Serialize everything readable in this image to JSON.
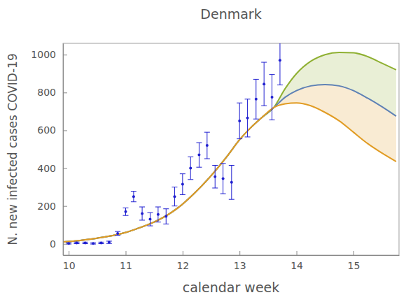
{
  "chart_data": {
    "type": "line",
    "title": "Denmark",
    "x_label": "calendar week",
    "y_label": "N. new infected cases COVID-19",
    "xlim": [
      9.9,
      15.8
    ],
    "xticks": [
      10,
      11,
      12,
      13,
      14,
      15
    ],
    "ylim": [
      -60,
      1060
    ],
    "yticks": [
      0,
      200,
      400,
      600,
      800,
      1000
    ],
    "grid": false,
    "series": [
      {
        "type": "scatter",
        "marker": "circle",
        "color": "#1f1fd0",
        "x": [
          10.0,
          10.14,
          10.29,
          10.43,
          10.57,
          10.71,
          10.86,
          11.0,
          11.14,
          11.29,
          11.43,
          11.57,
          11.71,
          11.86,
          12.0,
          12.14,
          12.29,
          12.43,
          12.57,
          12.71,
          12.86,
          13.0,
          13.14,
          13.29,
          13.43,
          13.57,
          13.71
        ],
        "values": [
          2,
          5,
          5,
          2,
          5,
          8,
          55,
          170,
          250,
          160,
          130,
          155,
          145,
          250,
          315,
          400,
          470,
          520,
          355,
          345,
          325,
          650,
          665,
          765,
          845,
          775,
          970
        ],
        "errors": [
          3,
          4,
          4,
          3,
          4,
          6,
          10,
          20,
          28,
          35,
          35,
          40,
          40,
          50,
          55,
          60,
          65,
          70,
          60,
          80,
          90,
          95,
          100,
          105,
          115,
          120,
          130
        ]
      },
      {
        "type": "line",
        "color": "#8fb032",
        "x": [
          9.9,
          10.2,
          10.5,
          10.8,
          11.0,
          11.2,
          11.5,
          11.8,
          12.0,
          12.2,
          12.5,
          12.8,
          13.0,
          13.2,
          13.4,
          13.6,
          13.8,
          14.0,
          14.25,
          14.5,
          14.75,
          15.0,
          15.25,
          15.5,
          15.75
        ],
        "values": [
          10,
          18,
          30,
          45,
          60,
          80,
          115,
          165,
          210,
          265,
          360,
          470,
          550,
          615,
          670,
          720,
          820,
          900,
          965,
          1000,
          1012,
          1010,
          990,
          955,
          920
        ]
      },
      {
        "type": "line",
        "color": "#5e81b5",
        "x": [
          9.9,
          10.2,
          10.5,
          10.8,
          11.0,
          11.2,
          11.5,
          11.8,
          12.0,
          12.2,
          12.5,
          12.8,
          13.0,
          13.2,
          13.4,
          13.6,
          13.8,
          14.0,
          14.25,
          14.5,
          14.75,
          15.0,
          15.25,
          15.5,
          15.75
        ],
        "values": [
          10,
          18,
          30,
          45,
          60,
          80,
          115,
          165,
          210,
          265,
          360,
          470,
          550,
          615,
          670,
          720,
          775,
          810,
          835,
          842,
          835,
          810,
          770,
          725,
          675
        ]
      },
      {
        "type": "line",
        "color": "#e19c24",
        "x": [
          9.9,
          10.2,
          10.5,
          10.8,
          11.0,
          11.2,
          11.5,
          11.8,
          12.0,
          12.2,
          12.5,
          12.8,
          13.0,
          13.2,
          13.4,
          13.6,
          13.8,
          14.0,
          14.25,
          14.5,
          14.75,
          15.0,
          15.25,
          15.5,
          15.75
        ],
        "values": [
          10,
          18,
          30,
          45,
          60,
          80,
          115,
          165,
          210,
          265,
          360,
          470,
          550,
          615,
          670,
          720,
          740,
          745,
          730,
          695,
          650,
          590,
          530,
          480,
          435
        ]
      }
    ]
  }
}
